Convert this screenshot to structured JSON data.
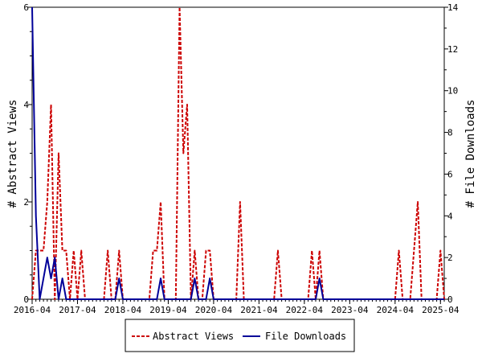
{
  "chart_data": {
    "type": "line",
    "title": "",
    "xlabel": "",
    "ylabel": "# Abstract Views",
    "ylabel_right": "# File Downloads",
    "x_tick_labels": [
      "2016-04",
      "2017-04",
      "2018-04",
      "2019-04",
      "2020-04",
      "2021-04",
      "2022-04",
      "2023-04",
      "2024-04",
      "2025-04"
    ],
    "x_range": [
      "2016-04",
      "2025-05"
    ],
    "ylim": [
      0,
      6
    ],
    "yticks": [
      0,
      2,
      4,
      6
    ],
    "ylim_right": [
      0,
      14
    ],
    "yticks_right": [
      0,
      2,
      4,
      6,
      8,
      10,
      12,
      14
    ],
    "grid": false,
    "legend_position": "bottom-center",
    "series": [
      {
        "name": "Abstract Views",
        "axis": "left",
        "color": "#cc0000",
        "style": "dashed",
        "points": [
          [
            "2016-04",
            0
          ],
          [
            "2016-05",
            1
          ],
          [
            "2016-06",
            1
          ],
          [
            "2016-07",
            1
          ],
          [
            "2016-08",
            2
          ],
          [
            "2016-09",
            4
          ],
          [
            "2016-10",
            0
          ],
          [
            "2016-11",
            3
          ],
          [
            "2016-12",
            1
          ],
          [
            "2017-01",
            1
          ],
          [
            "2017-02",
            0
          ],
          [
            "2017-03",
            1
          ],
          [
            "2017-04",
            0
          ],
          [
            "2017-05",
            1
          ],
          [
            "2017-06",
            0
          ],
          [
            "2017-07",
            0
          ],
          [
            "2017-08",
            0
          ],
          [
            "2017-09",
            0
          ],
          [
            "2017-10",
            0
          ],
          [
            "2017-11",
            0
          ],
          [
            "2017-12",
            1
          ],
          [
            "2018-01",
            0
          ],
          [
            "2018-02",
            0
          ],
          [
            "2018-03",
            1
          ],
          [
            "2018-04",
            0
          ],
          [
            "2018-05",
            0
          ],
          [
            "2018-06",
            0
          ],
          [
            "2018-07",
            0
          ],
          [
            "2018-08",
            0
          ],
          [
            "2018-09",
            0
          ],
          [
            "2018-10",
            0
          ],
          [
            "2018-11",
            0
          ],
          [
            "2018-12",
            1
          ],
          [
            "2019-01",
            1
          ],
          [
            "2019-02",
            2
          ],
          [
            "2019-03",
            0
          ],
          [
            "2019-04",
            0
          ],
          [
            "2019-05",
            0
          ],
          [
            "2019-06",
            0
          ],
          [
            "2019-07",
            6
          ],
          [
            "2019-08",
            3
          ],
          [
            "2019-09",
            4
          ],
          [
            "2019-10",
            0
          ],
          [
            "2019-11",
            1
          ],
          [
            "2019-12",
            0
          ],
          [
            "2020-01",
            0
          ],
          [
            "2020-02",
            1
          ],
          [
            "2020-03",
            1
          ],
          [
            "2020-04",
            0
          ],
          [
            "2020-05",
            0
          ],
          [
            "2020-06",
            0
          ],
          [
            "2020-07",
            0
          ],
          [
            "2020-08",
            0
          ],
          [
            "2020-09",
            0
          ],
          [
            "2020-10",
            0
          ],
          [
            "2020-11",
            2
          ],
          [
            "2020-12",
            0
          ],
          [
            "2021-01",
            0
          ],
          [
            "2021-02",
            0
          ],
          [
            "2021-03",
            0
          ],
          [
            "2021-04",
            0
          ],
          [
            "2021-05",
            0
          ],
          [
            "2021-06",
            0
          ],
          [
            "2021-07",
            0
          ],
          [
            "2021-08",
            0
          ],
          [
            "2021-09",
            1
          ],
          [
            "2021-10",
            0
          ],
          [
            "2021-11",
            0
          ],
          [
            "2021-12",
            0
          ],
          [
            "2022-01",
            0
          ],
          [
            "2022-02",
            0
          ],
          [
            "2022-03",
            0
          ],
          [
            "2022-04",
            0
          ],
          [
            "2022-05",
            0
          ],
          [
            "2022-06",
            1
          ],
          [
            "2022-07",
            0
          ],
          [
            "2022-08",
            1
          ],
          [
            "2022-09",
            0
          ],
          [
            "2022-10",
            0
          ],
          [
            "2022-11",
            0
          ],
          [
            "2022-12",
            0
          ],
          [
            "2023-01",
            0
          ],
          [
            "2023-02",
            0
          ],
          [
            "2023-03",
            0
          ],
          [
            "2023-04",
            0
          ],
          [
            "2023-05",
            0
          ],
          [
            "2023-06",
            0
          ],
          [
            "2023-07",
            0
          ],
          [
            "2023-08",
            0
          ],
          [
            "2023-09",
            0
          ],
          [
            "2023-10",
            0
          ],
          [
            "2023-11",
            0
          ],
          [
            "2023-12",
            0
          ],
          [
            "2024-01",
            0
          ],
          [
            "2024-02",
            0
          ],
          [
            "2024-03",
            0
          ],
          [
            "2024-04",
            0
          ],
          [
            "2024-05",
            1
          ],
          [
            "2024-06",
            0
          ],
          [
            "2024-07",
            0
          ],
          [
            "2024-08",
            0
          ],
          [
            "2024-09",
            1
          ],
          [
            "2024-10",
            2
          ],
          [
            "2024-11",
            0
          ],
          [
            "2024-12",
            0
          ],
          [
            "2025-01",
            0
          ],
          [
            "2025-02",
            0
          ],
          [
            "2025-03",
            0
          ],
          [
            "2025-04",
            1
          ],
          [
            "2025-05",
            0
          ]
        ]
      },
      {
        "name": "File Downloads",
        "axis": "right",
        "color": "#000099",
        "style": "solid",
        "points": [
          [
            "2016-04",
            14
          ],
          [
            "2016-05",
            4
          ],
          [
            "2016-06",
            0
          ],
          [
            "2016-07",
            1
          ],
          [
            "2016-08",
            2
          ],
          [
            "2016-09",
            1
          ],
          [
            "2016-10",
            2
          ],
          [
            "2016-11",
            0
          ],
          [
            "2016-12",
            1
          ],
          [
            "2017-01",
            0
          ],
          [
            "2017-02",
            0
          ],
          [
            "2017-03",
            0
          ],
          [
            "2017-04",
            0
          ],
          [
            "2017-05",
            0
          ],
          [
            "2017-06",
            0
          ],
          [
            "2017-07",
            0
          ],
          [
            "2017-08",
            0
          ],
          [
            "2017-09",
            0
          ],
          [
            "2017-10",
            0
          ],
          [
            "2017-11",
            0
          ],
          [
            "2017-12",
            0
          ],
          [
            "2018-01",
            0
          ],
          [
            "2018-02",
            0
          ],
          [
            "2018-03",
            1
          ],
          [
            "2018-04",
            0
          ],
          [
            "2018-05",
            0
          ],
          [
            "2018-06",
            0
          ],
          [
            "2018-07",
            0
          ],
          [
            "2018-08",
            0
          ],
          [
            "2018-09",
            0
          ],
          [
            "2018-10",
            0
          ],
          [
            "2018-11",
            0
          ],
          [
            "2018-12",
            0
          ],
          [
            "2019-01",
            0
          ],
          [
            "2019-02",
            1
          ],
          [
            "2019-03",
            0
          ],
          [
            "2019-04",
            0
          ],
          [
            "2019-05",
            0
          ],
          [
            "2019-06",
            0
          ],
          [
            "2019-07",
            0
          ],
          [
            "2019-08",
            0
          ],
          [
            "2019-09",
            0
          ],
          [
            "2019-10",
            0
          ],
          [
            "2019-11",
            1
          ],
          [
            "2019-12",
            0
          ],
          [
            "2020-01",
            0
          ],
          [
            "2020-02",
            0
          ],
          [
            "2020-03",
            1
          ],
          [
            "2020-04",
            0
          ],
          [
            "2020-05",
            0
          ],
          [
            "2020-06",
            0
          ],
          [
            "2020-07",
            0
          ],
          [
            "2020-08",
            0
          ],
          [
            "2020-09",
            0
          ],
          [
            "2020-10",
            0
          ],
          [
            "2020-11",
            0
          ],
          [
            "2020-12",
            0
          ],
          [
            "2021-01",
            0
          ],
          [
            "2021-02",
            0
          ],
          [
            "2021-03",
            0
          ],
          [
            "2021-04",
            0
          ],
          [
            "2021-05",
            0
          ],
          [
            "2021-06",
            0
          ],
          [
            "2021-07",
            0
          ],
          [
            "2021-08",
            0
          ],
          [
            "2021-09",
            0
          ],
          [
            "2021-10",
            0
          ],
          [
            "2021-11",
            0
          ],
          [
            "2021-12",
            0
          ],
          [
            "2022-01",
            0
          ],
          [
            "2022-02",
            0
          ],
          [
            "2022-03",
            0
          ],
          [
            "2022-04",
            0
          ],
          [
            "2022-05",
            0
          ],
          [
            "2022-06",
            0
          ],
          [
            "2022-07",
            0
          ],
          [
            "2022-08",
            1
          ],
          [
            "2022-09",
            0
          ],
          [
            "2022-10",
            0
          ],
          [
            "2022-11",
            0
          ],
          [
            "2022-12",
            0
          ],
          [
            "2023-01",
            0
          ],
          [
            "2023-02",
            0
          ],
          [
            "2023-03",
            0
          ],
          [
            "2023-04",
            0
          ],
          [
            "2023-05",
            0
          ],
          [
            "2023-06",
            0
          ],
          [
            "2023-07",
            0
          ],
          [
            "2023-08",
            0
          ],
          [
            "2023-09",
            0
          ],
          [
            "2023-10",
            0
          ],
          [
            "2023-11",
            0
          ],
          [
            "2023-12",
            0
          ],
          [
            "2024-01",
            0
          ],
          [
            "2024-02",
            0
          ],
          [
            "2024-03",
            0
          ],
          [
            "2024-04",
            0
          ],
          [
            "2024-05",
            0
          ],
          [
            "2024-06",
            0
          ],
          [
            "2024-07",
            0
          ],
          [
            "2024-08",
            0
          ],
          [
            "2024-09",
            0
          ],
          [
            "2024-10",
            0
          ],
          [
            "2024-11",
            0
          ],
          [
            "2024-12",
            0
          ],
          [
            "2025-01",
            0
          ],
          [
            "2025-02",
            0
          ],
          [
            "2025-03",
            0
          ],
          [
            "2025-04",
            0
          ],
          [
            "2025-05",
            0
          ]
        ]
      }
    ]
  }
}
